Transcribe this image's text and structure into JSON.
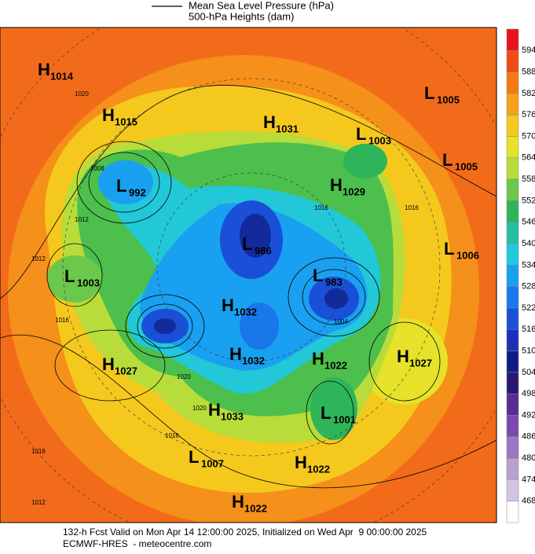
{
  "legend": {
    "lines": [
      "Mean Sea Level Pressure (hPa)",
      "500-hPa Heights (dam)"
    ]
  },
  "colorbar": {
    "labels": [
      594,
      588,
      582,
      576,
      570,
      564,
      558,
      552,
      546,
      540,
      534,
      528,
      522,
      516,
      510,
      504,
      498,
      492,
      486,
      480,
      474,
      468
    ],
    "colors": [
      "#e8141c",
      "#f24a16",
      "#f57a12",
      "#f7a01a",
      "#f5c81e",
      "#e6e22a",
      "#b8dc3a",
      "#6cc84a",
      "#2eb55a",
      "#22c0a0",
      "#20c8e0",
      "#1aa0f0",
      "#1878ea",
      "#1a50d8",
      "#1a30b8",
      "#101c88",
      "#2a1870",
      "#5a2a98",
      "#7a4ab0",
      "#9a78c4",
      "#b8a0d4",
      "#d4c4e4",
      "#ffffff"
    ]
  },
  "centers": [
    {
      "type": "H",
      "value": "1014"
    },
    {
      "type": "H",
      "value": "1015"
    },
    {
      "type": "H",
      "value": "1031"
    },
    {
      "type": "L",
      "value": "1003"
    },
    {
      "type": "L",
      "value": "1005"
    },
    {
      "type": "L",
      "value": "1005"
    },
    {
      "type": "L",
      "value": "992"
    },
    {
      "type": "H",
      "value": "1029"
    },
    {
      "type": "L",
      "value": "986"
    },
    {
      "type": "L",
      "value": "1006"
    },
    {
      "type": "L",
      "value": "1003"
    },
    {
      "type": "L",
      "value": "983"
    },
    {
      "type": "H",
      "value": "1032"
    },
    {
      "type": "H",
      "value": "1027"
    },
    {
      "type": "H",
      "value": "1032"
    },
    {
      "type": "H",
      "value": "1022"
    },
    {
      "type": "H",
      "value": "1027"
    },
    {
      "type": "H",
      "value": "1033"
    },
    {
      "type": "L",
      "value": "1001"
    },
    {
      "type": "L",
      "value": "1007"
    },
    {
      "type": "H",
      "value": "1022"
    },
    {
      "type": "H",
      "value": "1022"
    }
  ],
  "isobar_labels": [
    "1016",
    "1012",
    "1012",
    "1016",
    "1020",
    "1020",
    "1016",
    "1012",
    "1016",
    "1008",
    "1004",
    "1016",
    "1020"
  ],
  "footer": {
    "lines": [
      "132-h Fcst Valid on Mon Apr 14 12:00:00 2025, Initialized on Wed Apr  9 00:00:00 2025",
      "ECMWF-HRES  - meteocentre.com"
    ]
  }
}
